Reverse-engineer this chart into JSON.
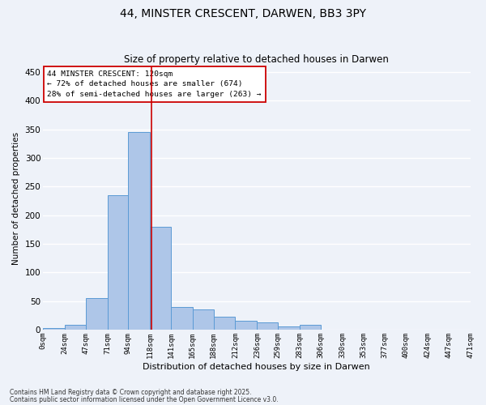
{
  "title1": "44, MINSTER CRESCENT, DARWEN, BB3 3PY",
  "title2": "Size of property relative to detached houses in Darwen",
  "xlabel": "Distribution of detached houses by size in Darwen",
  "ylabel": "Number of detached properties",
  "bar_color": "#aec6e8",
  "bar_edge_color": "#5b9bd5",
  "background_color": "#eef2f9",
  "grid_color": "#ffffff",
  "bins": [
    0,
    24,
    47,
    71,
    94,
    118,
    141,
    165,
    188,
    212,
    236,
    259,
    283,
    306,
    330,
    353,
    377,
    400,
    424,
    447,
    471
  ],
  "counts": [
    3,
    8,
    55,
    235,
    345,
    180,
    40,
    35,
    22,
    15,
    12,
    6,
    8,
    0,
    0,
    0,
    0,
    0,
    0,
    0
  ],
  "tick_labels": [
    "0sqm",
    "24sqm",
    "47sqm",
    "71sqm",
    "94sqm",
    "118sqm",
    "141sqm",
    "165sqm",
    "188sqm",
    "212sqm",
    "236sqm",
    "259sqm",
    "283sqm",
    "306sqm",
    "330sqm",
    "353sqm",
    "377sqm",
    "400sqm",
    "424sqm",
    "447sqm",
    "471sqm"
  ],
  "property_line_x": 120,
  "annotation_line1": "44 MINSTER CRESCENT: 120sqm",
  "annotation_line2": "← 72% of detached houses are smaller (674)",
  "annotation_line3": "28% of semi-detached houses are larger (263) →",
  "annotation_box_color": "#ffffff",
  "annotation_border_color": "#cc0000",
  "footnote1": "Contains HM Land Registry data © Crown copyright and database right 2025.",
  "footnote2": "Contains public sector information licensed under the Open Government Licence v3.0.",
  "ylim": [
    0,
    460
  ],
  "yticks": [
    0,
    50,
    100,
    150,
    200,
    250,
    300,
    350,
    400,
    450
  ]
}
